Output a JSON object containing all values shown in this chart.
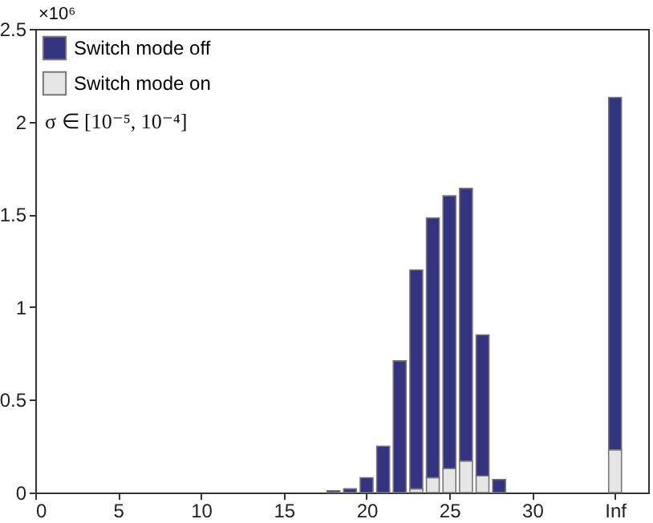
{
  "chart_data": {
    "type": "bar",
    "stacked": true,
    "x": [
      18,
      19,
      20,
      21,
      22,
      23,
      24,
      25,
      26,
      27,
      28,
      35
    ],
    "series": [
      {
        "name": "Switch mode on",
        "color": "#e6e6e6",
        "values": [
          null,
          null,
          null,
          null,
          null,
          0.02,
          0.08,
          0.13,
          0.17,
          0.09,
          null,
          0.23
        ]
      },
      {
        "name": "Switch mode off",
        "color": "#333381",
        "values": [
          0.01,
          0.02,
          0.08,
          0.25,
          0.71,
          1.18,
          1.4,
          1.47,
          1.47,
          0.76,
          0.07,
          1.9
        ]
      }
    ],
    "xlim": [
      0,
      37
    ],
    "xticks": [
      0,
      5,
      10,
      15,
      20,
      25,
      30,
      {
        "value": 35,
        "label": "Inf"
      }
    ],
    "ylim": [
      0,
      2.5
    ],
    "yticks": [
      0,
      0.5,
      1,
      1.5,
      2,
      2.5
    ],
    "legend": "top left",
    "grid": false,
    "annotations": [
      "×10⁶",
      "σ ∈ [10⁻⁵, 10⁻⁴]"
    ]
  }
}
